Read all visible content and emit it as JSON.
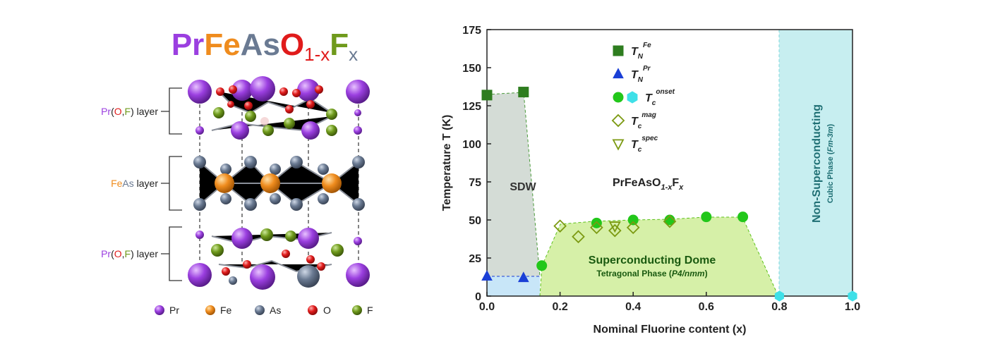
{
  "structure": {
    "title": [
      "Pr",
      "Fe",
      "As",
      "O",
      "1-x",
      "F",
      "x"
    ],
    "layer_top": [
      "Pr",
      "(",
      "O",
      ",",
      "F",
      ") layer"
    ],
    "layer_middle": [
      "Fe",
      "As",
      " layer"
    ],
    "layer_bottom": [
      "Pr",
      "(",
      "O",
      ",",
      "F",
      ") layer"
    ],
    "legend": [
      "Pr",
      "Fe",
      "As",
      "O",
      "F"
    ]
  },
  "chart_data": {
    "type": "scatter",
    "xlabel": "Nominal Fluorine content (x)",
    "ylabel": "Temperature T (K)",
    "xlim": [
      0,
      1
    ],
    "ylim": [
      0,
      175
    ],
    "xticks": [
      {
        "value": 0,
        "label": "0.0"
      },
      0.2,
      0.4,
      0.6,
      0.8,
      {
        "value": 1,
        "label": "1.0"
      }
    ],
    "yticks": [
      0,
      25,
      50,
      75,
      100,
      125,
      150,
      175
    ],
    "annotations": {
      "sdw": "SDW",
      "compound": [
        "PrFeAsO",
        "1-x",
        "F",
        "x"
      ],
      "dome": "Superconducting Dome",
      "dome_phase": [
        "Tetragonal Phase (",
        "P4/nmm",
        ")"
      ],
      "nonsc": "Non-Superconducting",
      "nonsc_phase": [
        "Cubic Phase (",
        "Fm-3m",
        ")"
      ]
    },
    "series": [
      {
        "name": "T",
        "sub": "N",
        "sup": "Fe",
        "marker": "square",
        "filled": true,
        "color": "#2e7d1f",
        "x": [
          0,
          0.1
        ],
        "values": [
          132,
          134
        ]
      },
      {
        "name": "T",
        "sub": "N",
        "sup": "Pr",
        "marker": "triangle",
        "filled": true,
        "color": "#1a3fd6",
        "x": [
          0,
          0.1
        ],
        "values": [
          13,
          12
        ]
      },
      {
        "name": "T",
        "sub": "c",
        "sup": "onset",
        "marker": "circle",
        "filled": true,
        "color": "#22c71a",
        "x": [
          0.15,
          0.3,
          0.4,
          0.5,
          0.6,
          0.7
        ],
        "values": [
          20,
          48,
          50,
          50,
          52,
          52
        ]
      },
      {
        "marker": "hexagon",
        "filled": true,
        "color": "#3fe0e8",
        "x": [
          0.8,
          1.0
        ],
        "values": [
          0,
          0
        ]
      },
      {
        "name": "T",
        "sub": "c",
        "sup": "mag",
        "marker": "diamond",
        "filled": false,
        "color": "#7c9a12",
        "x": [
          0.2,
          0.25,
          0.3,
          0.35,
          0.4,
          0.5
        ],
        "values": [
          46,
          39,
          45,
          43,
          45,
          49
        ]
      },
      {
        "name": "T",
        "sub": "c",
        "sup": "spec",
        "marker": "triangle-down",
        "filled": false,
        "color": "#7c9a12",
        "x": [
          0.35
        ],
        "values": [
          46
        ]
      }
    ]
  }
}
